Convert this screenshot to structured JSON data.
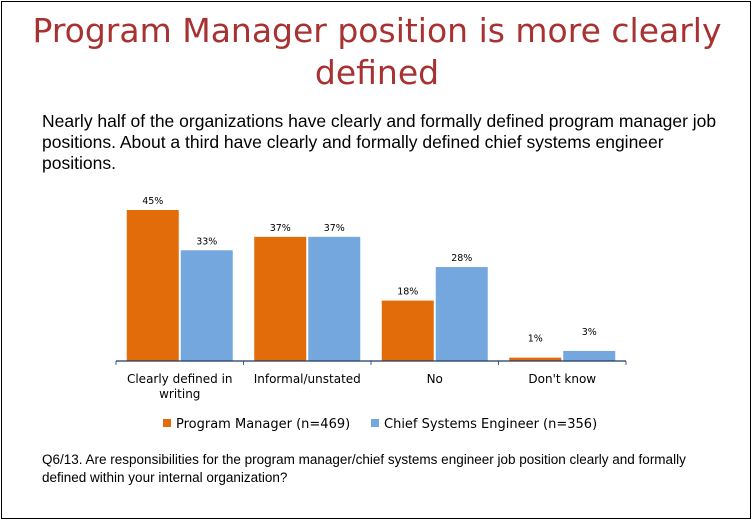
{
  "slide": {
    "title": "Program Manager position is more clearly defined",
    "subtitle": "Nearly half of the organizations have clearly and formally defined program manager job positions. About a third have clearly and formally defined chief systems engineer positions.",
    "question": "Q6/13.  Are responsibilities for the program manager/chief systems engineer job position clearly and formally defined within your internal organization?"
  },
  "chart_data": {
    "type": "bar",
    "categories": [
      [
        "Clearly defined in",
        "writing"
      ],
      [
        "Informal/unstated"
      ],
      [
        "No"
      ],
      [
        "Don't know"
      ]
    ],
    "series": [
      {
        "name": "Program Manager (n=469)",
        "values": [
          45,
          37,
          18,
          1
        ],
        "labels": [
          "45%",
          "37%",
          "18%",
          "1%"
        ],
        "color": "#e36c0a"
      },
      {
        "name": "Chief Systems Engineer (n=356)",
        "values": [
          33,
          37,
          28,
          3
        ],
        "labels": [
          "33%",
          "37%",
          "28%",
          "3%"
        ],
        "color": "#74a7de"
      }
    ],
    "ylim": [
      0,
      45
    ],
    "grid": false,
    "legend": "bottom",
    "axis_color": "#1f3864"
  }
}
